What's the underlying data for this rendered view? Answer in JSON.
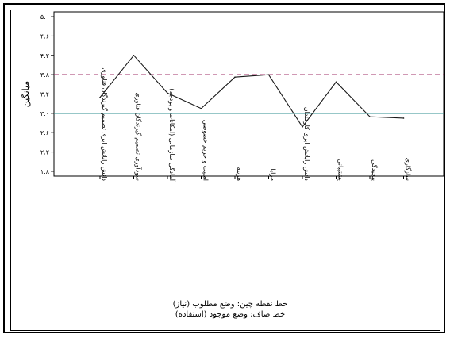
{
  "chart_data": {
    "type": "line",
    "ylabel": "میانگین",
    "ylim": [
      1.7,
      5.1
    ],
    "yticks": [
      {
        "value": 5.0,
        "label": "۵.۰"
      },
      {
        "value": 4.6,
        "label": "۴.۶"
      },
      {
        "value": 4.2,
        "label": "۴.۲"
      },
      {
        "value": 3.8,
        "label": "۳.۸"
      },
      {
        "value": 3.4,
        "label": "۳.۴"
      },
      {
        "value": 3.0,
        "label": "۳.۰"
      },
      {
        "value": 2.6,
        "label": "۲.۶"
      },
      {
        "value": 2.2,
        "label": "۲.۲"
      },
      {
        "value": 1.8,
        "label": "۱.۸"
      }
    ],
    "categories": [
      "دانش رابانش ابری تصمیم گیرندگان فناوری",
      "سودآوری تصمیم گیرندگان فناوری",
      "آمادگی سازمانی (امکانات و بودجه)",
      "امنیت و حریم خصوصی",
      "هزینه",
      "مزایا",
      "دانش رابانش ابری کارمندان",
      "پشتیبانی",
      "پیچیدگی",
      "سازگاری"
    ],
    "series": [
      {
        "values": [
          3.33,
          4.2,
          3.42,
          3.1,
          3.75,
          3.8,
          2.72,
          3.65,
          2.93,
          2.9
        ],
        "color": "#1a1a1a",
        "style": "solid"
      }
    ],
    "reference_lines": [
      {
        "value": 3.8,
        "color": "#a0306a",
        "style": "dashed"
      },
      {
        "value": 3.0,
        "color": "#2f8f92",
        "style": "solid"
      }
    ],
    "notes": [
      "خط نقطه چین: وضع مطلوب (نیاز)",
      "خط صاف: وضع موجود (استفاده)"
    ]
  }
}
